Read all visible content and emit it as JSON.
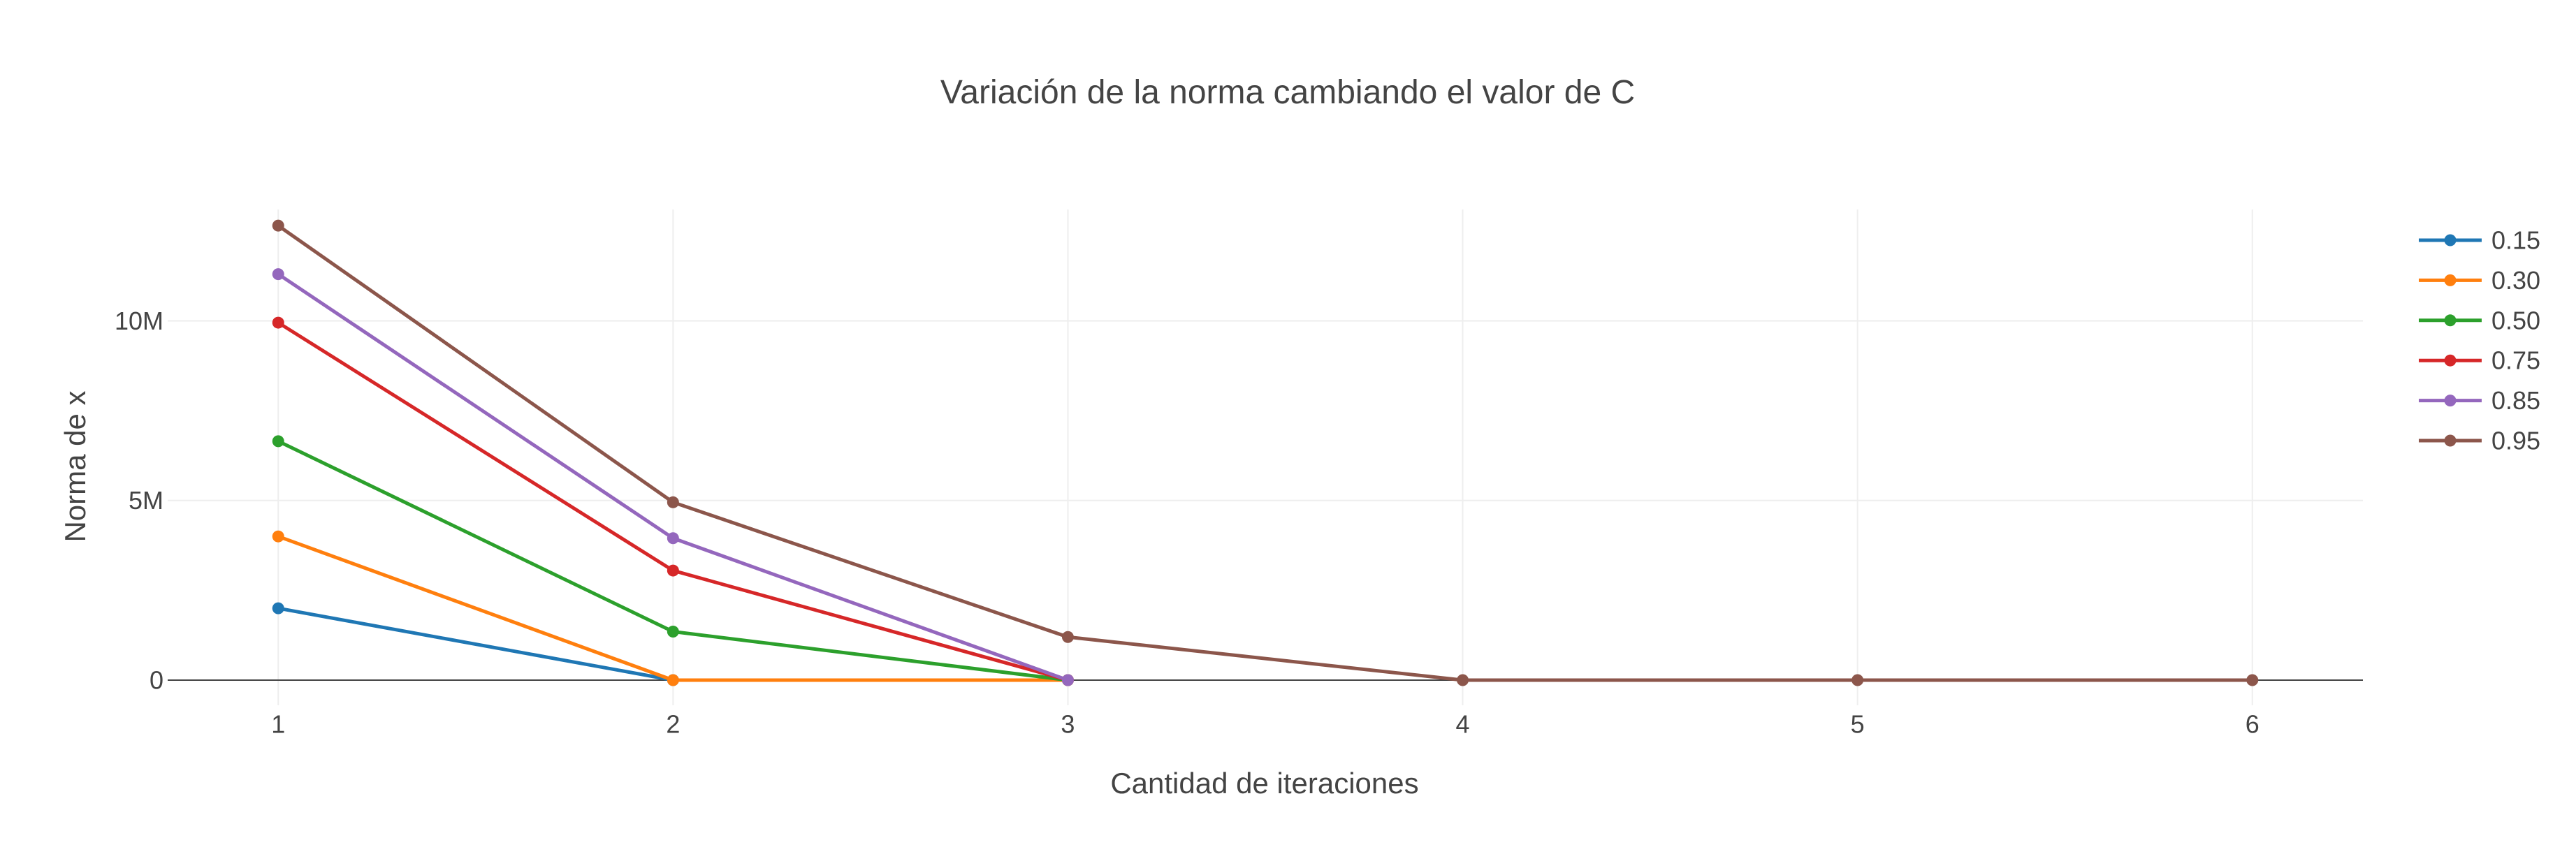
{
  "chart_data": {
    "type": "line",
    "title": "Variación de la norma cambiando el valor de C",
    "xlabel": "Cantidad de iteraciones",
    "ylabel": "Norma de x",
    "x": [
      1,
      2,
      3,
      4,
      5,
      6
    ],
    "xlim": [
      0.72,
      6.28
    ],
    "ylim": [
      -700000,
      13100000
    ],
    "xticks": [
      1,
      2,
      3,
      4,
      5,
      6
    ],
    "xtick_labels": [
      "1",
      "2",
      "3",
      "4",
      "5",
      "6"
    ],
    "yticks": [
      0,
      5000000,
      10000000
    ],
    "ytick_labels": [
      "0",
      "5M",
      "10M"
    ],
    "grid": true,
    "legend_position": "top-right",
    "series": [
      {
        "name": "0.15",
        "color": "#1f77b4",
        "x": [
          1,
          2
        ],
        "values": [
          2000000,
          0
        ]
      },
      {
        "name": "0.30",
        "color": "#ff7f0e",
        "x": [
          1,
          2,
          3
        ],
        "values": [
          4000000,
          0,
          0
        ]
      },
      {
        "name": "0.50",
        "color": "#2ca02c",
        "x": [
          1,
          2,
          3
        ],
        "values": [
          6650000,
          1350000,
          0
        ]
      },
      {
        "name": "0.75",
        "color": "#d62728",
        "x": [
          1,
          2,
          3
        ],
        "values": [
          9950000,
          3050000,
          0
        ]
      },
      {
        "name": "0.85",
        "color": "#9467bd",
        "x": [
          1,
          2,
          3
        ],
        "values": [
          11300000,
          3950000,
          0
        ]
      },
      {
        "name": "0.95",
        "color": "#8c564b",
        "x": [
          1,
          2,
          3,
          4,
          5,
          6
        ],
        "values": [
          12650000,
          4950000,
          1200000,
          0,
          0,
          0
        ]
      }
    ]
  }
}
